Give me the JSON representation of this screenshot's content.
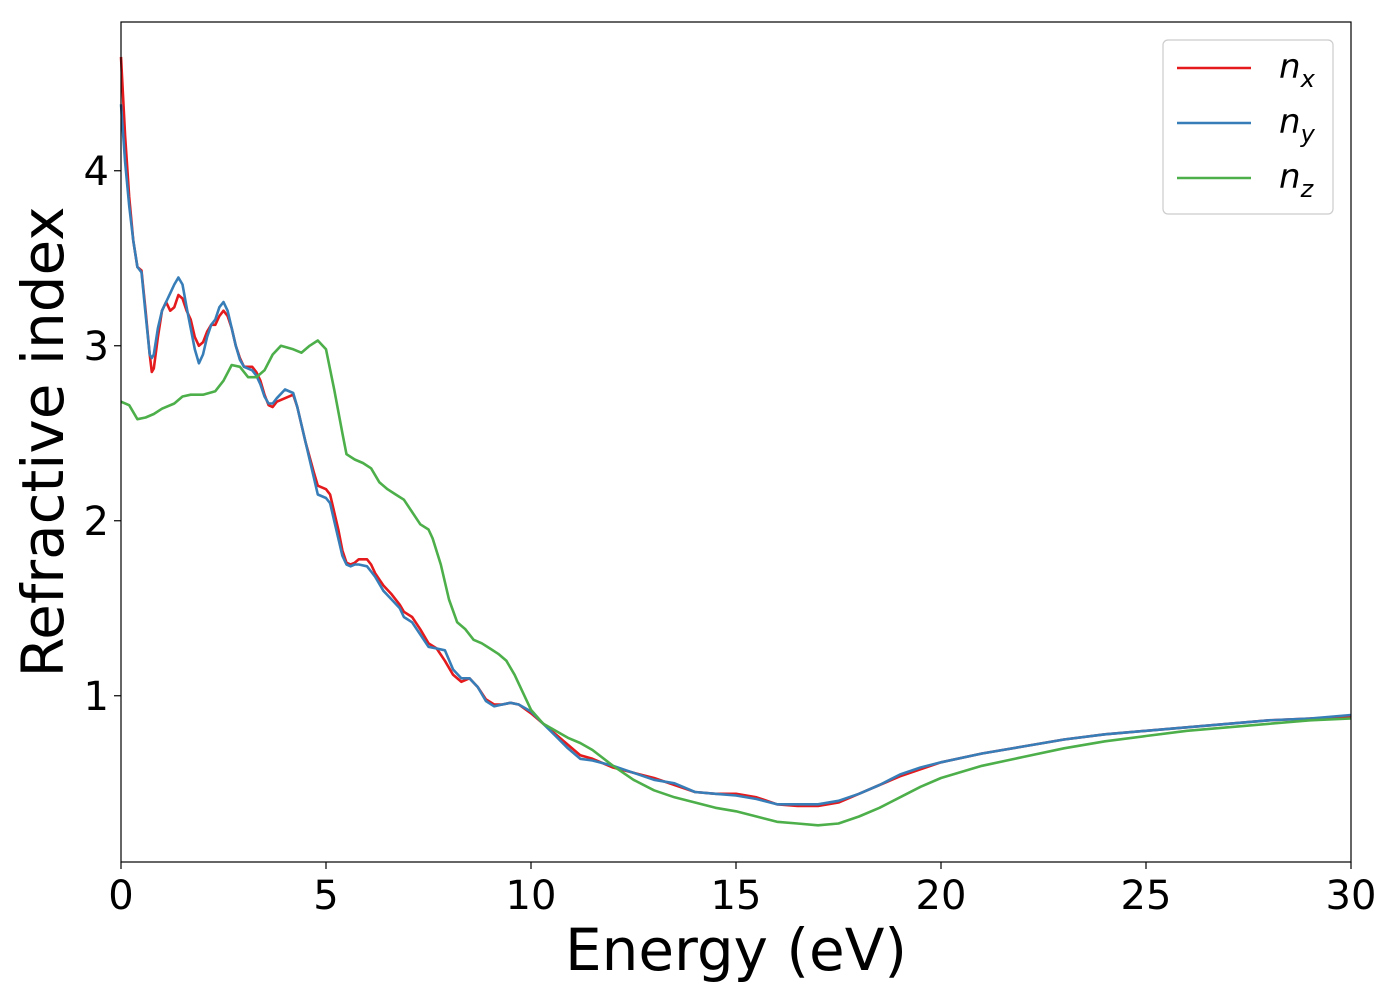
{
  "chart_data": {
    "type": "line",
    "xlabel": "Energy (eV)",
    "ylabel": "Refractive index",
    "xlim": [
      0,
      30
    ],
    "ylim": [
      0.05,
      4.85
    ],
    "x_ticks": [
      0,
      5,
      10,
      15,
      20,
      25,
      30
    ],
    "y_ticks": [
      1,
      2,
      3,
      4
    ],
    "grid": false,
    "legend_position": "top-right",
    "series": [
      {
        "name": "n_x",
        "legend_main": "n",
        "legend_sub": "x",
        "color": "#e41a1c",
        "points": [
          [
            0,
            4.65
          ],
          [
            0.1,
            4.2
          ],
          [
            0.2,
            3.85
          ],
          [
            0.3,
            3.6
          ],
          [
            0.4,
            3.45
          ],
          [
            0.5,
            3.43
          ],
          [
            0.6,
            3.2
          ],
          [
            0.7,
            2.95
          ],
          [
            0.75,
            2.85
          ],
          [
            0.8,
            2.87
          ],
          [
            0.9,
            3.05
          ],
          [
            1.0,
            3.2
          ],
          [
            1.1,
            3.25
          ],
          [
            1.2,
            3.2
          ],
          [
            1.3,
            3.22
          ],
          [
            1.4,
            3.29
          ],
          [
            1.5,
            3.27
          ],
          [
            1.6,
            3.2
          ],
          [
            1.7,
            3.15
          ],
          [
            1.8,
            3.05
          ],
          [
            1.9,
            3.0
          ],
          [
            2.0,
            3.02
          ],
          [
            2.1,
            3.08
          ],
          [
            2.2,
            3.12
          ],
          [
            2.3,
            3.12
          ],
          [
            2.4,
            3.17
          ],
          [
            2.5,
            3.2
          ],
          [
            2.6,
            3.17
          ],
          [
            2.7,
            3.1
          ],
          [
            2.8,
            3.0
          ],
          [
            2.9,
            2.93
          ],
          [
            3.0,
            2.88
          ],
          [
            3.2,
            2.88
          ],
          [
            3.3,
            2.85
          ],
          [
            3.4,
            2.8
          ],
          [
            3.5,
            2.72
          ],
          [
            3.6,
            2.66
          ],
          [
            3.7,
            2.65
          ],
          [
            3.8,
            2.68
          ],
          [
            4.0,
            2.7
          ],
          [
            4.2,
            2.72
          ],
          [
            4.3,
            2.65
          ],
          [
            4.5,
            2.45
          ],
          [
            4.7,
            2.28
          ],
          [
            4.8,
            2.2
          ],
          [
            5.0,
            2.18
          ],
          [
            5.1,
            2.15
          ],
          [
            5.2,
            2.05
          ],
          [
            5.3,
            1.95
          ],
          [
            5.4,
            1.83
          ],
          [
            5.5,
            1.76
          ],
          [
            5.6,
            1.75
          ],
          [
            5.7,
            1.76
          ],
          [
            5.8,
            1.78
          ],
          [
            6.0,
            1.78
          ],
          [
            6.1,
            1.75
          ],
          [
            6.2,
            1.7
          ],
          [
            6.4,
            1.63
          ],
          [
            6.6,
            1.58
          ],
          [
            6.8,
            1.52
          ],
          [
            6.9,
            1.48
          ],
          [
            7.1,
            1.45
          ],
          [
            7.3,
            1.38
          ],
          [
            7.5,
            1.3
          ],
          [
            7.7,
            1.27
          ],
          [
            7.9,
            1.2
          ],
          [
            8.1,
            1.12
          ],
          [
            8.3,
            1.08
          ],
          [
            8.5,
            1.1
          ],
          [
            8.7,
            1.05
          ],
          [
            8.9,
            0.98
          ],
          [
            9.1,
            0.95
          ],
          [
            9.3,
            0.95
          ],
          [
            9.5,
            0.96
          ],
          [
            9.7,
            0.95
          ],
          [
            10.0,
            0.9
          ],
          [
            10.3,
            0.84
          ],
          [
            10.6,
            0.78
          ],
          [
            10.9,
            0.72
          ],
          [
            11.2,
            0.66
          ],
          [
            11.5,
            0.64
          ],
          [
            12.0,
            0.59
          ],
          [
            12.5,
            0.56
          ],
          [
            13.0,
            0.53
          ],
          [
            13.5,
            0.49
          ],
          [
            14.0,
            0.45
          ],
          [
            14.5,
            0.44
          ],
          [
            15.0,
            0.44
          ],
          [
            15.5,
            0.42
          ],
          [
            16.0,
            0.38
          ],
          [
            16.5,
            0.37
          ],
          [
            17.0,
            0.37
          ],
          [
            17.5,
            0.39
          ],
          [
            18.0,
            0.44
          ],
          [
            18.5,
            0.49
          ],
          [
            19.0,
            0.54
          ],
          [
            19.5,
            0.58
          ],
          [
            20.0,
            0.62
          ],
          [
            21.0,
            0.67
          ],
          [
            22.0,
            0.71
          ],
          [
            23.0,
            0.75
          ],
          [
            24.0,
            0.78
          ],
          [
            25.0,
            0.8
          ],
          [
            26.0,
            0.82
          ],
          [
            27.0,
            0.84
          ],
          [
            28.0,
            0.86
          ],
          [
            29.0,
            0.87
          ],
          [
            30.0,
            0.88
          ]
        ]
      },
      {
        "name": "n_y",
        "legend_main": "n",
        "legend_sub": "y",
        "color": "#377eb8",
        "points": [
          [
            0,
            4.38
          ],
          [
            0.1,
            4.05
          ],
          [
            0.2,
            3.8
          ],
          [
            0.3,
            3.6
          ],
          [
            0.4,
            3.45
          ],
          [
            0.5,
            3.42
          ],
          [
            0.6,
            3.18
          ],
          [
            0.7,
            2.95
          ],
          [
            0.75,
            2.93
          ],
          [
            0.8,
            2.95
          ],
          [
            0.9,
            3.1
          ],
          [
            1.0,
            3.2
          ],
          [
            1.1,
            3.25
          ],
          [
            1.2,
            3.3
          ],
          [
            1.3,
            3.35
          ],
          [
            1.4,
            3.39
          ],
          [
            1.5,
            3.35
          ],
          [
            1.6,
            3.22
          ],
          [
            1.7,
            3.1
          ],
          [
            1.8,
            2.98
          ],
          [
            1.9,
            2.9
          ],
          [
            2.0,
            2.95
          ],
          [
            2.1,
            3.05
          ],
          [
            2.2,
            3.12
          ],
          [
            2.3,
            3.15
          ],
          [
            2.4,
            3.22
          ],
          [
            2.5,
            3.25
          ],
          [
            2.6,
            3.2
          ],
          [
            2.7,
            3.1
          ],
          [
            2.8,
            3.0
          ],
          [
            2.9,
            2.92
          ],
          [
            3.0,
            2.88
          ],
          [
            3.2,
            2.86
          ],
          [
            3.3,
            2.83
          ],
          [
            3.4,
            2.78
          ],
          [
            3.5,
            2.71
          ],
          [
            3.6,
            2.67
          ],
          [
            3.7,
            2.67
          ],
          [
            3.8,
            2.7
          ],
          [
            4.0,
            2.75
          ],
          [
            4.2,
            2.73
          ],
          [
            4.3,
            2.65
          ],
          [
            4.5,
            2.45
          ],
          [
            4.7,
            2.25
          ],
          [
            4.8,
            2.15
          ],
          [
            5.0,
            2.13
          ],
          [
            5.1,
            2.1
          ],
          [
            5.2,
            2.0
          ],
          [
            5.3,
            1.9
          ],
          [
            5.4,
            1.8
          ],
          [
            5.5,
            1.75
          ],
          [
            5.6,
            1.74
          ],
          [
            5.7,
            1.75
          ],
          [
            5.8,
            1.75
          ],
          [
            6.0,
            1.74
          ],
          [
            6.1,
            1.71
          ],
          [
            6.2,
            1.68
          ],
          [
            6.4,
            1.6
          ],
          [
            6.6,
            1.55
          ],
          [
            6.8,
            1.5
          ],
          [
            6.9,
            1.45
          ],
          [
            7.1,
            1.42
          ],
          [
            7.3,
            1.35
          ],
          [
            7.5,
            1.28
          ],
          [
            7.7,
            1.27
          ],
          [
            7.9,
            1.26
          ],
          [
            8.1,
            1.15
          ],
          [
            8.3,
            1.1
          ],
          [
            8.5,
            1.1
          ],
          [
            8.7,
            1.05
          ],
          [
            8.9,
            0.97
          ],
          [
            9.1,
            0.94
          ],
          [
            9.3,
            0.95
          ],
          [
            9.5,
            0.96
          ],
          [
            9.7,
            0.95
          ],
          [
            10.0,
            0.91
          ],
          [
            10.3,
            0.84
          ],
          [
            10.6,
            0.77
          ],
          [
            10.9,
            0.7
          ],
          [
            11.2,
            0.64
          ],
          [
            11.5,
            0.63
          ],
          [
            12.0,
            0.6
          ],
          [
            12.5,
            0.56
          ],
          [
            13.0,
            0.52
          ],
          [
            13.5,
            0.5
          ],
          [
            14.0,
            0.45
          ],
          [
            14.5,
            0.44
          ],
          [
            15.0,
            0.43
          ],
          [
            15.5,
            0.41
          ],
          [
            16.0,
            0.38
          ],
          [
            16.5,
            0.38
          ],
          [
            17.0,
            0.38
          ],
          [
            17.5,
            0.4
          ],
          [
            18.0,
            0.44
          ],
          [
            18.5,
            0.49
          ],
          [
            19.0,
            0.55
          ],
          [
            19.5,
            0.59
          ],
          [
            20.0,
            0.62
          ],
          [
            21.0,
            0.67
          ],
          [
            22.0,
            0.71
          ],
          [
            23.0,
            0.75
          ],
          [
            24.0,
            0.78
          ],
          [
            25.0,
            0.8
          ],
          [
            26.0,
            0.82
          ],
          [
            27.0,
            0.84
          ],
          [
            28.0,
            0.86
          ],
          [
            29.0,
            0.87
          ],
          [
            30.0,
            0.89
          ]
        ]
      },
      {
        "name": "n_z",
        "legend_main": "n",
        "legend_sub": "z",
        "color": "#4daf4a",
        "points": [
          [
            0,
            2.68
          ],
          [
            0.2,
            2.66
          ],
          [
            0.4,
            2.58
          ],
          [
            0.6,
            2.59
          ],
          [
            0.8,
            2.61
          ],
          [
            1.0,
            2.64
          ],
          [
            1.3,
            2.67
          ],
          [
            1.5,
            2.71
          ],
          [
            1.7,
            2.72
          ],
          [
            2.0,
            2.72
          ],
          [
            2.3,
            2.74
          ],
          [
            2.5,
            2.8
          ],
          [
            2.7,
            2.89
          ],
          [
            2.9,
            2.88
          ],
          [
            3.1,
            2.82
          ],
          [
            3.3,
            2.82
          ],
          [
            3.5,
            2.86
          ],
          [
            3.7,
            2.95
          ],
          [
            3.9,
            3.0
          ],
          [
            4.2,
            2.98
          ],
          [
            4.4,
            2.96
          ],
          [
            4.6,
            3.0
          ],
          [
            4.8,
            3.03
          ],
          [
            5.0,
            2.98
          ],
          [
            5.2,
            2.75
          ],
          [
            5.4,
            2.5
          ],
          [
            5.5,
            2.38
          ],
          [
            5.7,
            2.35
          ],
          [
            5.9,
            2.33
          ],
          [
            6.1,
            2.3
          ],
          [
            6.3,
            2.22
          ],
          [
            6.5,
            2.18
          ],
          [
            6.7,
            2.15
          ],
          [
            6.9,
            2.12
          ],
          [
            7.1,
            2.05
          ],
          [
            7.3,
            1.98
          ],
          [
            7.5,
            1.95
          ],
          [
            7.6,
            1.9
          ],
          [
            7.8,
            1.75
          ],
          [
            8.0,
            1.55
          ],
          [
            8.2,
            1.42
          ],
          [
            8.4,
            1.38
          ],
          [
            8.6,
            1.32
          ],
          [
            8.8,
            1.3
          ],
          [
            9.0,
            1.27
          ],
          [
            9.2,
            1.24
          ],
          [
            9.4,
            1.2
          ],
          [
            9.6,
            1.12
          ],
          [
            9.8,
            1.02
          ],
          [
            10.0,
            0.92
          ],
          [
            10.3,
            0.84
          ],
          [
            10.6,
            0.8
          ],
          [
            10.9,
            0.76
          ],
          [
            11.2,
            0.73
          ],
          [
            11.5,
            0.69
          ],
          [
            12.0,
            0.6
          ],
          [
            12.5,
            0.52
          ],
          [
            13.0,
            0.46
          ],
          [
            13.5,
            0.42
          ],
          [
            14.0,
            0.39
          ],
          [
            14.5,
            0.36
          ],
          [
            15.0,
            0.34
          ],
          [
            15.5,
            0.31
          ],
          [
            16.0,
            0.28
          ],
          [
            16.5,
            0.27
          ],
          [
            17.0,
            0.26
          ],
          [
            17.5,
            0.27
          ],
          [
            18.0,
            0.31
          ],
          [
            18.5,
            0.36
          ],
          [
            19.0,
            0.42
          ],
          [
            19.5,
            0.48
          ],
          [
            20.0,
            0.53
          ],
          [
            21.0,
            0.6
          ],
          [
            22.0,
            0.65
          ],
          [
            23.0,
            0.7
          ],
          [
            24.0,
            0.74
          ],
          [
            25.0,
            0.77
          ],
          [
            26.0,
            0.8
          ],
          [
            27.0,
            0.82
          ],
          [
            28.0,
            0.84
          ],
          [
            29.0,
            0.86
          ],
          [
            30.0,
            0.87
          ]
        ]
      }
    ]
  }
}
